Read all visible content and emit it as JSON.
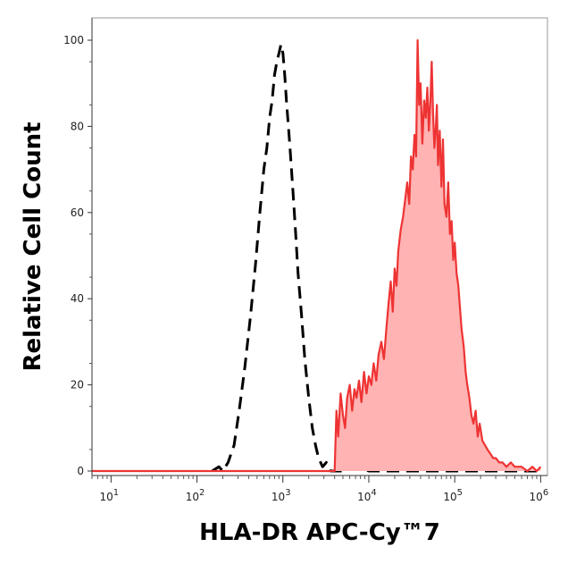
{
  "chart_data": {
    "type": "area",
    "xlabel": "HLA-DR APC-Cy™7",
    "ylabel": "Relative Cell Count",
    "x_scale": "log",
    "xlim": [
      6,
      1200000
    ],
    "ylim": [
      0,
      100
    ],
    "x_ticks": [
      {
        "base": "10",
        "exp": "1",
        "value": 10
      },
      {
        "base": "10",
        "exp": "2",
        "value": 100
      },
      {
        "base": "10",
        "exp": "3",
        "value": 1000
      },
      {
        "base": "10",
        "exp": "4",
        "value": 10000
      },
      {
        "base": "10",
        "exp": "5",
        "value": 100000
      },
      {
        "base": "10",
        "exp": "6",
        "value": 1000000
      }
    ],
    "y_ticks": [
      "0",
      "20",
      "40",
      "60",
      "80",
      "100"
    ],
    "grid": false,
    "series": [
      {
        "style": "dashed-outline",
        "color": "#000000",
        "points": [
          [
            150,
            0
          ],
          [
            180,
            1
          ],
          [
            200,
            0
          ],
          [
            230,
            2
          ],
          [
            270,
            6
          ],
          [
            310,
            14
          ],
          [
            360,
            24
          ],
          [
            420,
            36
          ],
          [
            480,
            48
          ],
          [
            540,
            60
          ],
          [
            600,
            70
          ],
          [
            650,
            75
          ],
          [
            700,
            82
          ],
          [
            750,
            86
          ],
          [
            800,
            92
          ],
          [
            850,
            95
          ],
          [
            900,
            97
          ],
          [
            950,
            99
          ],
          [
            1000,
            97
          ],
          [
            1050,
            92
          ],
          [
            1100,
            86
          ],
          [
            1200,
            76
          ],
          [
            1300,
            66
          ],
          [
            1400,
            56
          ],
          [
            1500,
            46
          ],
          [
            1650,
            36
          ],
          [
            1800,
            26
          ],
          [
            2000,
            17
          ],
          [
            2200,
            10
          ],
          [
            2400,
            6
          ],
          [
            2600,
            3
          ],
          [
            2900,
            1
          ],
          [
            3200,
            2
          ],
          [
            3600,
            0
          ],
          [
            5000,
            0
          ],
          [
            7000,
            1
          ],
          [
            10000,
            0
          ],
          [
            50000,
            0
          ],
          [
            100000,
            0
          ],
          [
            500000,
            0
          ],
          [
            1000000,
            0
          ]
        ]
      },
      {
        "style": "filled",
        "color": "#ee3333",
        "fill": "#ffb3b3",
        "points": [
          [
            6,
            0
          ],
          [
            4000,
            0
          ],
          [
            4200,
            14
          ],
          [
            4400,
            8
          ],
          [
            4700,
            18
          ],
          [
            5000,
            13
          ],
          [
            5300,
            10
          ],
          [
            5600,
            17
          ],
          [
            6000,
            20
          ],
          [
            6400,
            14
          ],
          [
            6800,
            19
          ],
          [
            7200,
            17
          ],
          [
            7700,
            21
          ],
          [
            8200,
            16
          ],
          [
            8800,
            23
          ],
          [
            9400,
            18
          ],
          [
            10000,
            22
          ],
          [
            10700,
            20
          ],
          [
            11400,
            25
          ],
          [
            12200,
            21
          ],
          [
            13000,
            27
          ],
          [
            14000,
            30
          ],
          [
            15000,
            26
          ],
          [
            16000,
            33
          ],
          [
            17000,
            39
          ],
          [
            18000,
            44
          ],
          [
            19000,
            37
          ],
          [
            20000,
            47
          ],
          [
            21000,
            43
          ],
          [
            22000,
            51
          ],
          [
            23500,
            56
          ],
          [
            25000,
            59
          ],
          [
            26500,
            63
          ],
          [
            28000,
            67
          ],
          [
            29500,
            62
          ],
          [
            31000,
            73
          ],
          [
            32500,
            70
          ],
          [
            34000,
            78
          ],
          [
            35500,
            73
          ],
          [
            37000,
            100
          ],
          [
            38500,
            85
          ],
          [
            40000,
            90
          ],
          [
            42000,
            76
          ],
          [
            44000,
            86
          ],
          [
            46000,
            82
          ],
          [
            48000,
            89
          ],
          [
            50000,
            79
          ],
          [
            52000,
            86
          ],
          [
            54000,
            95
          ],
          [
            56000,
            83
          ],
          [
            58000,
            75
          ],
          [
            60000,
            79
          ],
          [
            62000,
            85
          ],
          [
            64000,
            71
          ],
          [
            67000,
            79
          ],
          [
            70000,
            66
          ],
          [
            73000,
            77
          ],
          [
            76000,
            62
          ],
          [
            80000,
            59
          ],
          [
            84000,
            67
          ],
          [
            88000,
            55
          ],
          [
            92000,
            58
          ],
          [
            96000,
            49
          ],
          [
            100000,
            53
          ],
          [
            105000,
            46
          ],
          [
            110000,
            43
          ],
          [
            115000,
            38
          ],
          [
            120000,
            33
          ],
          [
            127000,
            29
          ],
          [
            134000,
            23
          ],
          [
            140000,
            20
          ],
          [
            148000,
            17
          ],
          [
            156000,
            13
          ],
          [
            165000,
            11
          ],
          [
            175000,
            14
          ],
          [
            185000,
            8
          ],
          [
            195000,
            11
          ],
          [
            210000,
            7
          ],
          [
            225000,
            6
          ],
          [
            240000,
            5
          ],
          [
            260000,
            4
          ],
          [
            280000,
            3
          ],
          [
            300000,
            3
          ],
          [
            330000,
            2
          ],
          [
            360000,
            2
          ],
          [
            400000,
            1
          ],
          [
            450000,
            2
          ],
          [
            500000,
            1
          ],
          [
            600000,
            1
          ],
          [
            700000,
            0
          ],
          [
            800000,
            1
          ],
          [
            900000,
            0
          ],
          [
            1000000,
            1
          ]
        ]
      }
    ]
  }
}
